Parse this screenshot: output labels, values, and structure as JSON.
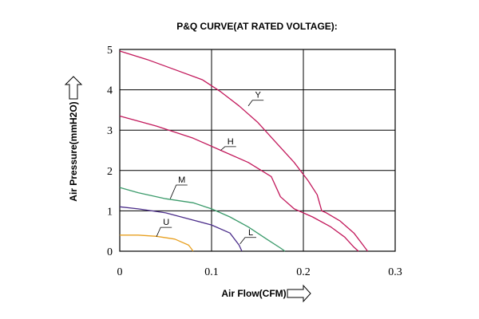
{
  "chart_data": {
    "type": "line",
    "title": "P&Q CURVE(AT RATED VOLTAGE):",
    "xlabel": "Air Flow(CFM)",
    "ylabel": "Air Pressure(mmH2O)",
    "xlim": [
      0,
      0.3
    ],
    "ylim": [
      0,
      5
    ],
    "x_ticks": [
      "0",
      "0.1",
      "0.2",
      "0.3"
    ],
    "y_ticks": [
      "0",
      "1",
      "2",
      "3",
      "4",
      "5"
    ],
    "x_tick_values": [
      0,
      0.1,
      0.2,
      0.3
    ],
    "y_tick_values": [
      0,
      1,
      2,
      3,
      4,
      5
    ],
    "grid": true,
    "series": [
      {
        "name": "Y",
        "color": "#c2185b",
        "x": [
          0,
          0.03,
          0.06,
          0.09,
          0.11,
          0.13,
          0.15,
          0.17,
          0.19,
          0.205,
          0.215,
          0.22,
          0.225,
          0.24,
          0.255,
          0.265,
          0.27
        ],
        "y": [
          4.96,
          4.75,
          4.5,
          4.25,
          3.95,
          3.6,
          3.2,
          2.7,
          2.2,
          1.75,
          1.4,
          1.0,
          0.95,
          0.75,
          0.45,
          0.15,
          0.0
        ],
        "label_anchor": [
          0.14,
          3.6
        ],
        "label_pos": [
          0.148,
          3.8
        ]
      },
      {
        "name": "H",
        "color": "#c2185b",
        "x": [
          0,
          0.04,
          0.08,
          0.11,
          0.14,
          0.165,
          0.175,
          0.19,
          0.21,
          0.23,
          0.245,
          0.255,
          0.26
        ],
        "y": [
          3.35,
          3.1,
          2.8,
          2.5,
          2.2,
          1.85,
          1.35,
          1.05,
          0.85,
          0.6,
          0.35,
          0.1,
          0.0
        ],
        "label_anchor": [
          0.11,
          2.5
        ],
        "label_pos": [
          0.118,
          2.65
        ]
      },
      {
        "name": "M",
        "color": "#3a9a6a",
        "x": [
          0,
          0.02,
          0.05,
          0.08,
          0.1,
          0.12,
          0.14,
          0.16,
          0.175,
          0.18
        ],
        "y": [
          1.58,
          1.45,
          1.3,
          1.2,
          1.05,
          0.85,
          0.6,
          0.3,
          0.08,
          0.0
        ],
        "label_anchor": [
          0.055,
          1.3
        ],
        "label_pos": [
          0.065,
          1.7
        ]
      },
      {
        "name": "L",
        "color": "#4b2d8a",
        "x": [
          0,
          0.02,
          0.05,
          0.075,
          0.1,
          0.12,
          0.13,
          0.133
        ],
        "y": [
          1.1,
          1.05,
          0.95,
          0.8,
          0.65,
          0.45,
          0.15,
          0.0
        ],
        "label_anchor": [
          0.131,
          0.18
        ],
        "label_pos": [
          0.14,
          0.4
        ]
      },
      {
        "name": "U",
        "color": "#e8a020",
        "x": [
          0,
          0.02,
          0.04,
          0.06,
          0.075,
          0.08
        ],
        "y": [
          0.4,
          0.4,
          0.37,
          0.3,
          0.15,
          0.0
        ],
        "label_anchor": [
          0.04,
          0.36
        ],
        "label_pos": [
          0.048,
          0.65
        ]
      }
    ]
  }
}
